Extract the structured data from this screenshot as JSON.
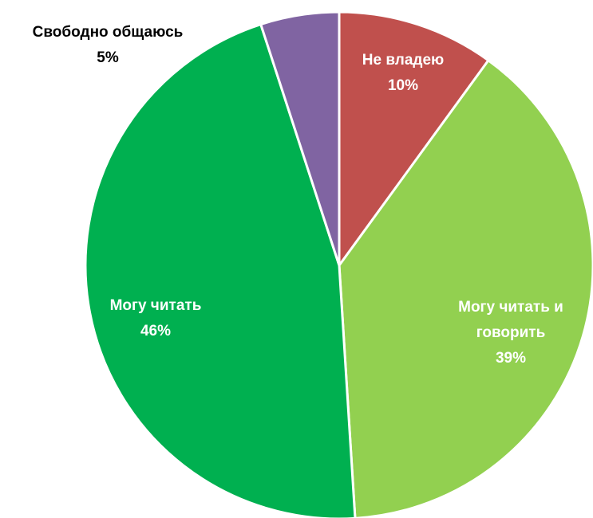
{
  "chart_data": {
    "type": "pie",
    "categories": [
      "Не владею",
      "Могу читать и говорить",
      "Могу читать",
      "Свободно общаюсь"
    ],
    "values": [
      10,
      39,
      46,
      5
    ],
    "value_labels": [
      "10%",
      "39%",
      "46%",
      "5%"
    ],
    "colors": [
      "#c0504d",
      "#92d050",
      "#00b050",
      "#8064a2"
    ]
  }
}
